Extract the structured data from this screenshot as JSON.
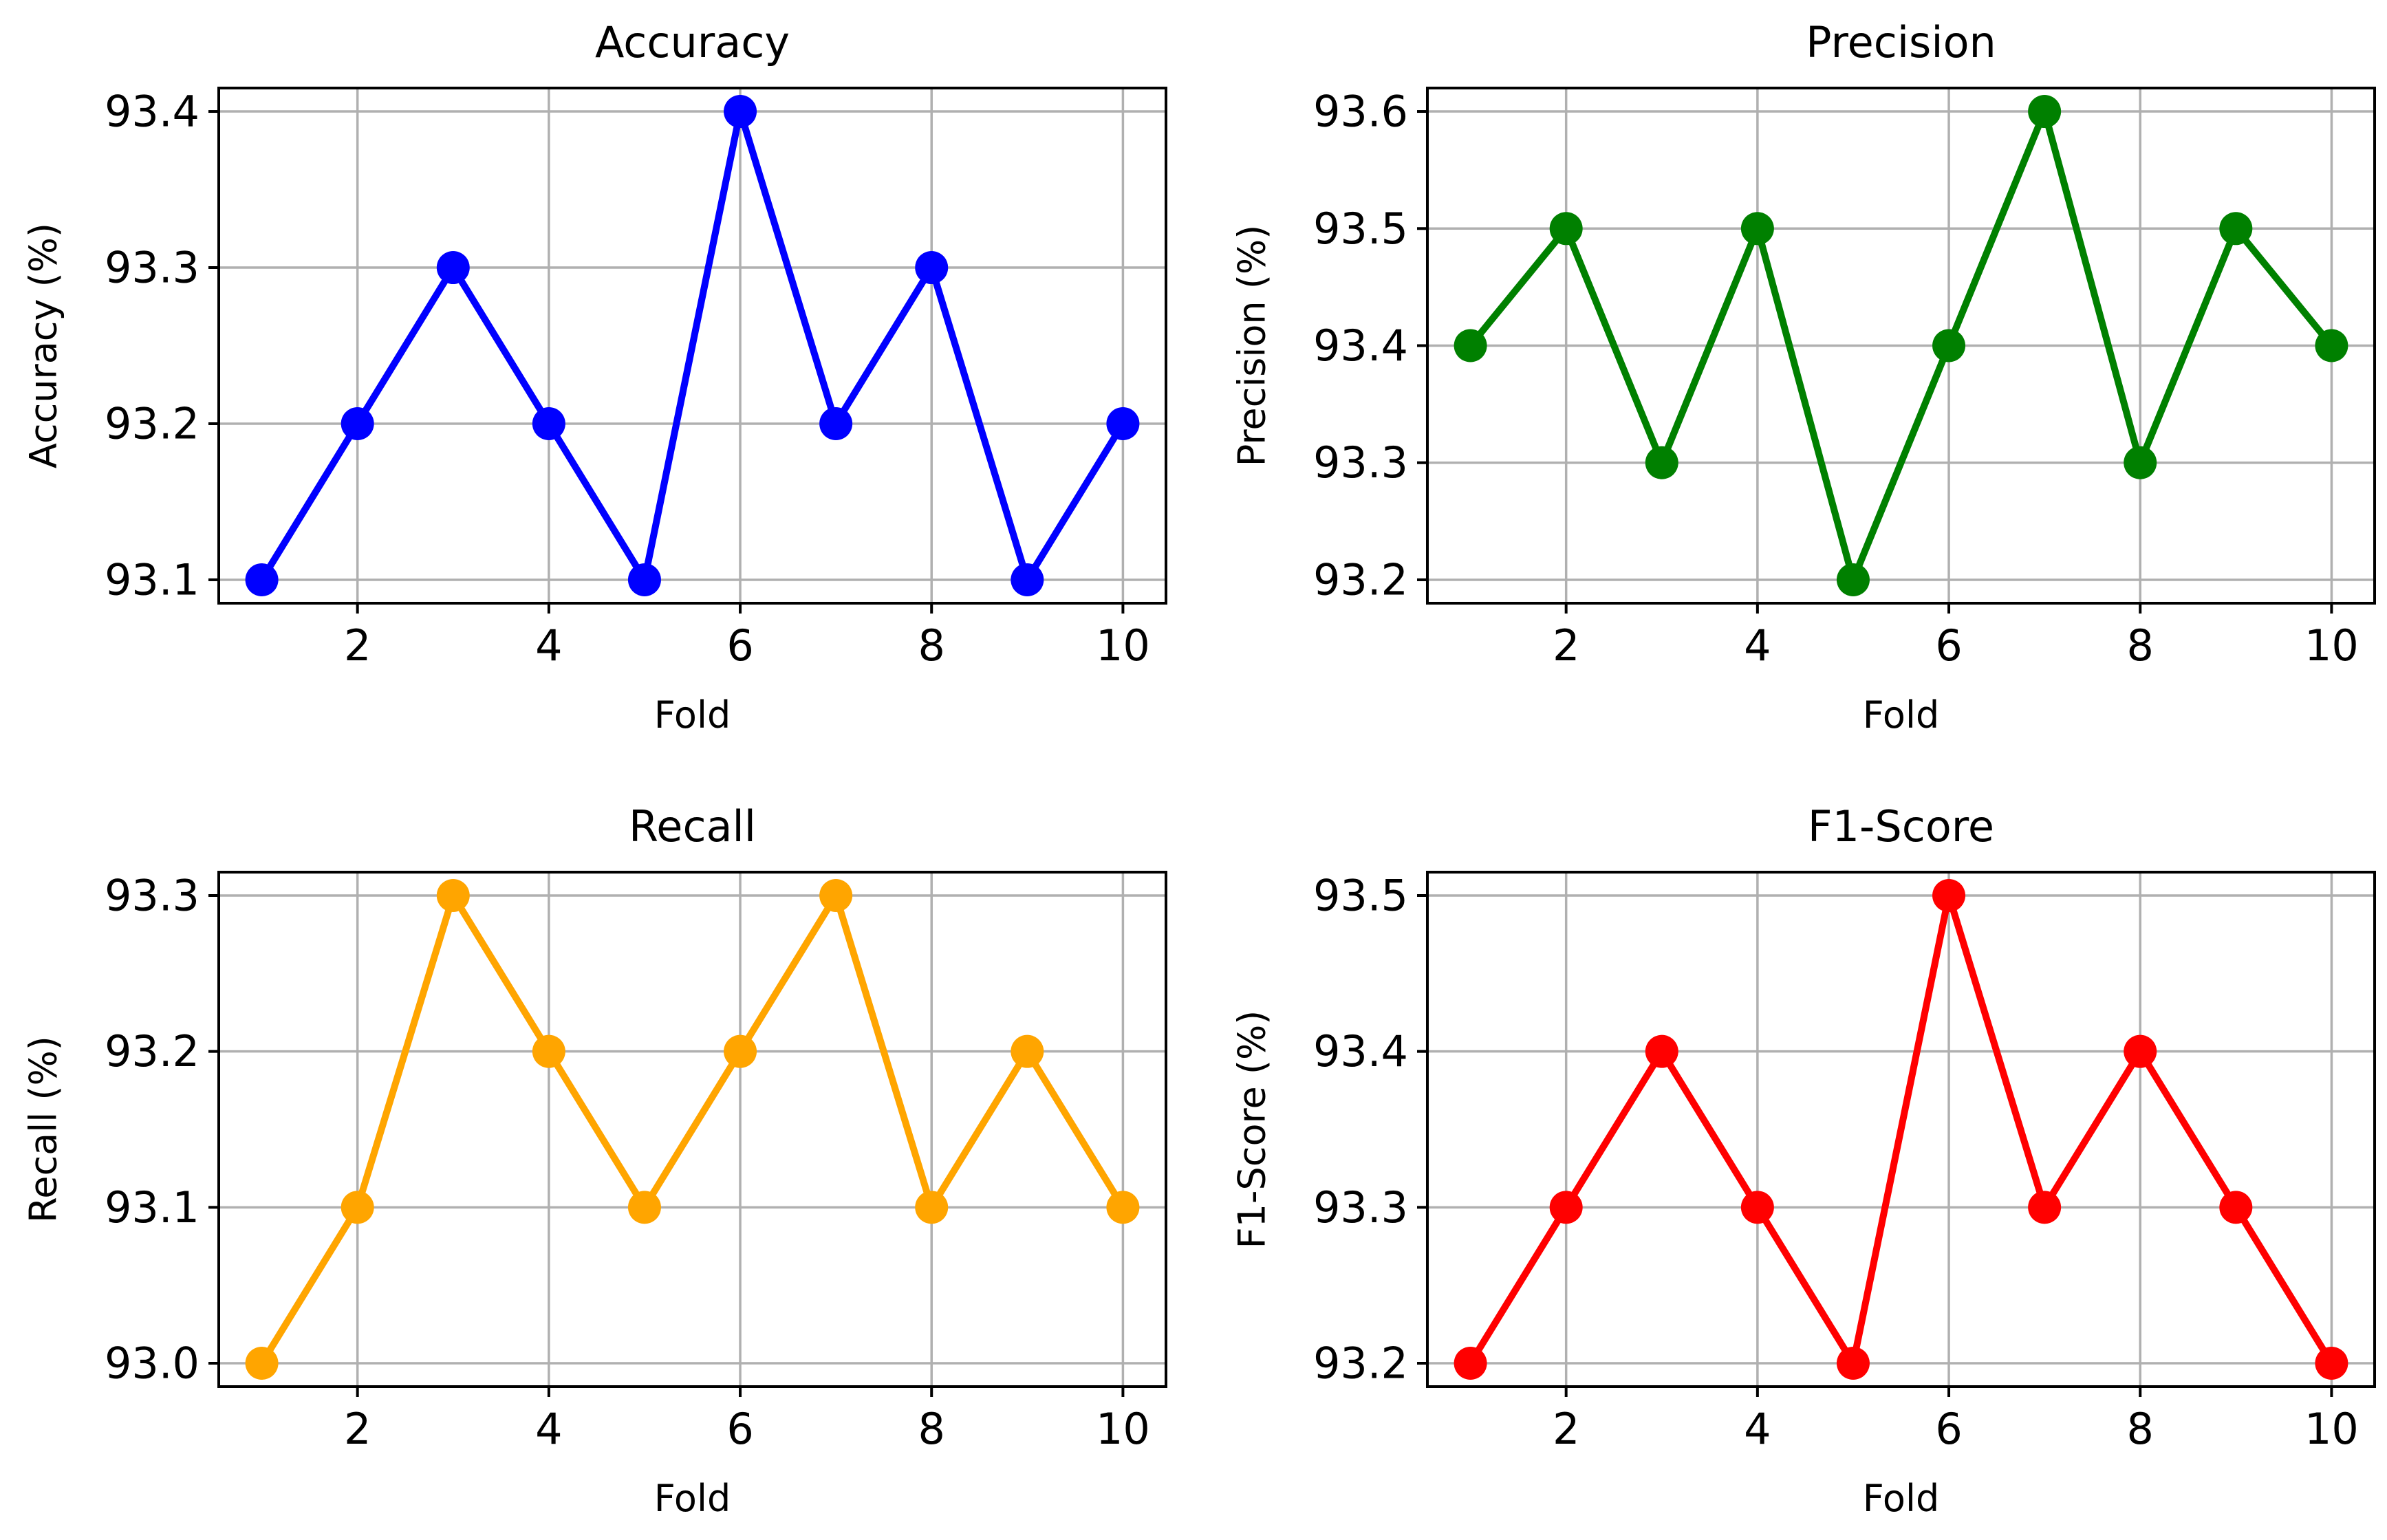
{
  "chart_data": [
    {
      "type": "line",
      "title": "Accuracy",
      "xlabel": "Fold",
      "ylabel": "Accuracy (%)",
      "color": "#0000ff",
      "x": [
        1,
        2,
        3,
        4,
        5,
        6,
        7,
        8,
        9,
        10
      ],
      "values": [
        93.1,
        93.2,
        93.3,
        93.2,
        93.1,
        93.4,
        93.2,
        93.3,
        93.1,
        93.2
      ],
      "xlim": [
        0.55,
        10.45
      ],
      "ylim": [
        93.085,
        93.415
      ],
      "xticks": [
        2,
        4,
        6,
        8,
        10
      ],
      "xtick_labels": [
        "2",
        "4",
        "6",
        "8",
        "10"
      ],
      "yticks": [
        93.1,
        93.2,
        93.3,
        93.4
      ],
      "ytick_labels": [
        "93.1",
        "93.2",
        "93.3",
        "93.4"
      ],
      "grid": true
    },
    {
      "type": "line",
      "title": "Precision",
      "xlabel": "Fold",
      "ylabel": "Precision (%)",
      "color": "#008000",
      "x": [
        1,
        2,
        3,
        4,
        5,
        6,
        7,
        8,
        9,
        10
      ],
      "values": [
        93.4,
        93.5,
        93.3,
        93.5,
        93.2,
        93.4,
        93.6,
        93.3,
        93.5,
        93.4
      ],
      "xlim": [
        0.55,
        10.45
      ],
      "ylim": [
        93.18,
        93.62
      ],
      "xticks": [
        2,
        4,
        6,
        8,
        10
      ],
      "xtick_labels": [
        "2",
        "4",
        "6",
        "8",
        "10"
      ],
      "yticks": [
        93.2,
        93.3,
        93.4,
        93.5,
        93.6
      ],
      "ytick_labels": [
        "93.2",
        "93.3",
        "93.4",
        "93.5",
        "93.6"
      ],
      "grid": true
    },
    {
      "type": "line",
      "title": "Recall",
      "xlabel": "Fold",
      "ylabel": "Recall (%)",
      "color": "#ffa500",
      "x": [
        1,
        2,
        3,
        4,
        5,
        6,
        7,
        8,
        9,
        10
      ],
      "values": [
        93.0,
        93.1,
        93.3,
        93.2,
        93.1,
        93.2,
        93.3,
        93.1,
        93.2,
        93.1
      ],
      "xlim": [
        0.55,
        10.45
      ],
      "ylim": [
        92.985,
        93.315
      ],
      "xticks": [
        2,
        4,
        6,
        8,
        10
      ],
      "xtick_labels": [
        "2",
        "4",
        "6",
        "8",
        "10"
      ],
      "yticks": [
        93.0,
        93.1,
        93.2,
        93.3
      ],
      "ytick_labels": [
        "93.0",
        "93.1",
        "93.2",
        "93.3"
      ],
      "grid": true
    },
    {
      "type": "line",
      "title": "F1-Score",
      "xlabel": "Fold",
      "ylabel": "F1-Score (%)",
      "color": "#ff0000",
      "x": [
        1,
        2,
        3,
        4,
        5,
        6,
        7,
        8,
        9,
        10
      ],
      "values": [
        93.2,
        93.3,
        93.4,
        93.3,
        93.2,
        93.5,
        93.3,
        93.4,
        93.3,
        93.2
      ],
      "xlim": [
        0.55,
        10.45
      ],
      "ylim": [
        93.185,
        93.515
      ],
      "xticks": [
        2,
        4,
        6,
        8,
        10
      ],
      "xtick_labels": [
        "2",
        "4",
        "6",
        "8",
        "10"
      ],
      "yticks": [
        93.2,
        93.3,
        93.4,
        93.5
      ],
      "ytick_labels": [
        "93.2",
        "93.3",
        "93.4",
        "93.5"
      ],
      "grid": true
    }
  ]
}
